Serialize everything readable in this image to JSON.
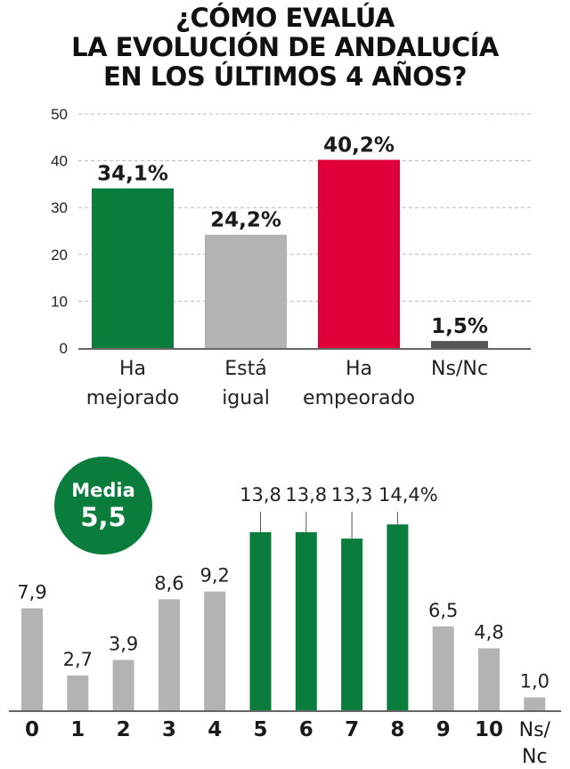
{
  "title_lines": [
    "¿CÓMO EVALÚA",
    "LA EVOLUCIÓN DE ANDALUCÍA",
    "EN LOS ÚLTIMOS 4 AÑOS?"
  ],
  "colors": {
    "green": "#0a7d3c",
    "grey": "#b3b3b3",
    "red": "#e2003a",
    "dark": "#555555",
    "grid": "#bbbbbb"
  },
  "badge": {
    "label": "Media",
    "value": "5,5"
  },
  "chart_data": [
    {
      "type": "bar",
      "title": "¿CÓMO EVALÚA LA EVOLUCIÓN DE ANDALUCÍA EN LOS ÚLTIMOS 4 AÑOS?",
      "categories": [
        [
          "Ha",
          "mejorado"
        ],
        [
          "Está",
          "igual"
        ],
        [
          "Ha",
          "empeorado"
        ],
        [
          "Ns/Nc"
        ]
      ],
      "values": [
        34.1,
        24.2,
        40.2,
        1.5
      ],
      "value_labels": [
        "34,1%",
        "24,2%",
        "40,2%",
        "1,5%"
      ],
      "bar_colors": [
        "green",
        "grey",
        "red",
        "dark"
      ],
      "ylim": [
        0,
        50
      ],
      "yticks": [
        0,
        10,
        20,
        30,
        40,
        50
      ],
      "grid": true,
      "xlabel": "",
      "ylabel": ""
    },
    {
      "type": "bar",
      "categories": [
        [
          "0"
        ],
        [
          "1"
        ],
        [
          "2"
        ],
        [
          "3"
        ],
        [
          "4"
        ],
        [
          "5"
        ],
        [
          "6"
        ],
        [
          "7"
        ],
        [
          "8"
        ],
        [
          "9"
        ],
        [
          "10"
        ],
        [
          "Ns/",
          "Nc"
        ]
      ],
      "values": [
        7.9,
        2.7,
        3.9,
        8.6,
        9.2,
        13.8,
        13.8,
        13.3,
        14.4,
        6.5,
        4.8,
        1.0
      ],
      "value_labels": [
        "7,9",
        "2,7",
        "3,9",
        "8,6",
        "9,2",
        "13,8",
        "13,8",
        "13,3",
        "14,4%",
        "6,5",
        "4,8",
        "1,0"
      ],
      "bar_colors": [
        "grey",
        "grey",
        "grey",
        "grey",
        "grey",
        "green",
        "green",
        "green",
        "green",
        "grey",
        "grey",
        "grey"
      ],
      "ylim": [
        0,
        15
      ],
      "grid": false,
      "xlabel": "",
      "ylabel": ""
    }
  ]
}
